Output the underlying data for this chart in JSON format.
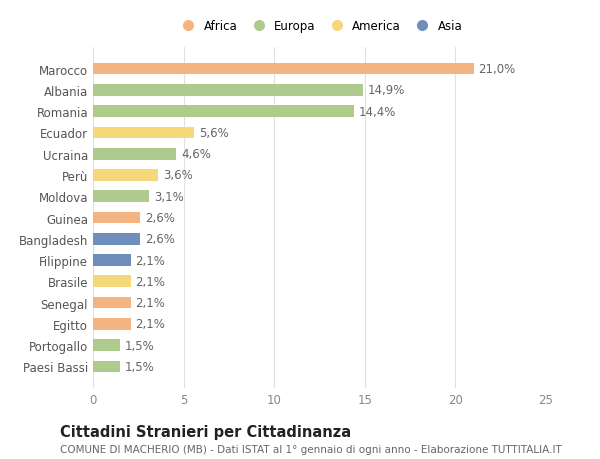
{
  "countries": [
    "Marocco",
    "Albania",
    "Romania",
    "Ecuador",
    "Ucraina",
    "Perù",
    "Moldova",
    "Guinea",
    "Bangladesh",
    "Filippine",
    "Brasile",
    "Senegal",
    "Egitto",
    "Portogallo",
    "Paesi Bassi"
  ],
  "values": [
    21.0,
    14.9,
    14.4,
    5.6,
    4.6,
    3.6,
    3.1,
    2.6,
    2.6,
    2.1,
    2.1,
    2.1,
    2.1,
    1.5,
    1.5
  ],
  "labels": [
    "21,0%",
    "14,9%",
    "14,4%",
    "5,6%",
    "4,6%",
    "3,6%",
    "3,1%",
    "2,6%",
    "2,6%",
    "2,1%",
    "2,1%",
    "2,1%",
    "2,1%",
    "1,5%",
    "1,5%"
  ],
  "categories": [
    "Africa",
    "Europa",
    "America",
    "Asia"
  ],
  "bar_colors": [
    "#F4B482",
    "#AECA8C",
    "#AECA8C",
    "#F5D87A",
    "#AECA8C",
    "#F5D87A",
    "#AECA8C",
    "#F4B482",
    "#6E8FBA",
    "#6E8FBA",
    "#F5D87A",
    "#F4B482",
    "#F4B482",
    "#AECA8C",
    "#AECA8C"
  ],
  "legend_colors": [
    "#F4B482",
    "#AECA8C",
    "#F5D87A",
    "#6E8FBA"
  ],
  "title": "Cittadini Stranieri per Cittadinanza",
  "subtitle": "COMUNE DI MACHERIO (MB) - Dati ISTAT al 1° gennaio di ogni anno - Elaborazione TUTTITALIA.IT",
  "xlim": [
    0,
    25
  ],
  "xticks": [
    0,
    5,
    10,
    15,
    20,
    25
  ],
  "background_color": "#ffffff",
  "grid_color": "#e0e0e0",
  "bar_height": 0.55,
  "label_fontsize": 8.5,
  "tick_fontsize": 8.5,
  "title_fontsize": 10.5,
  "subtitle_fontsize": 7.5
}
